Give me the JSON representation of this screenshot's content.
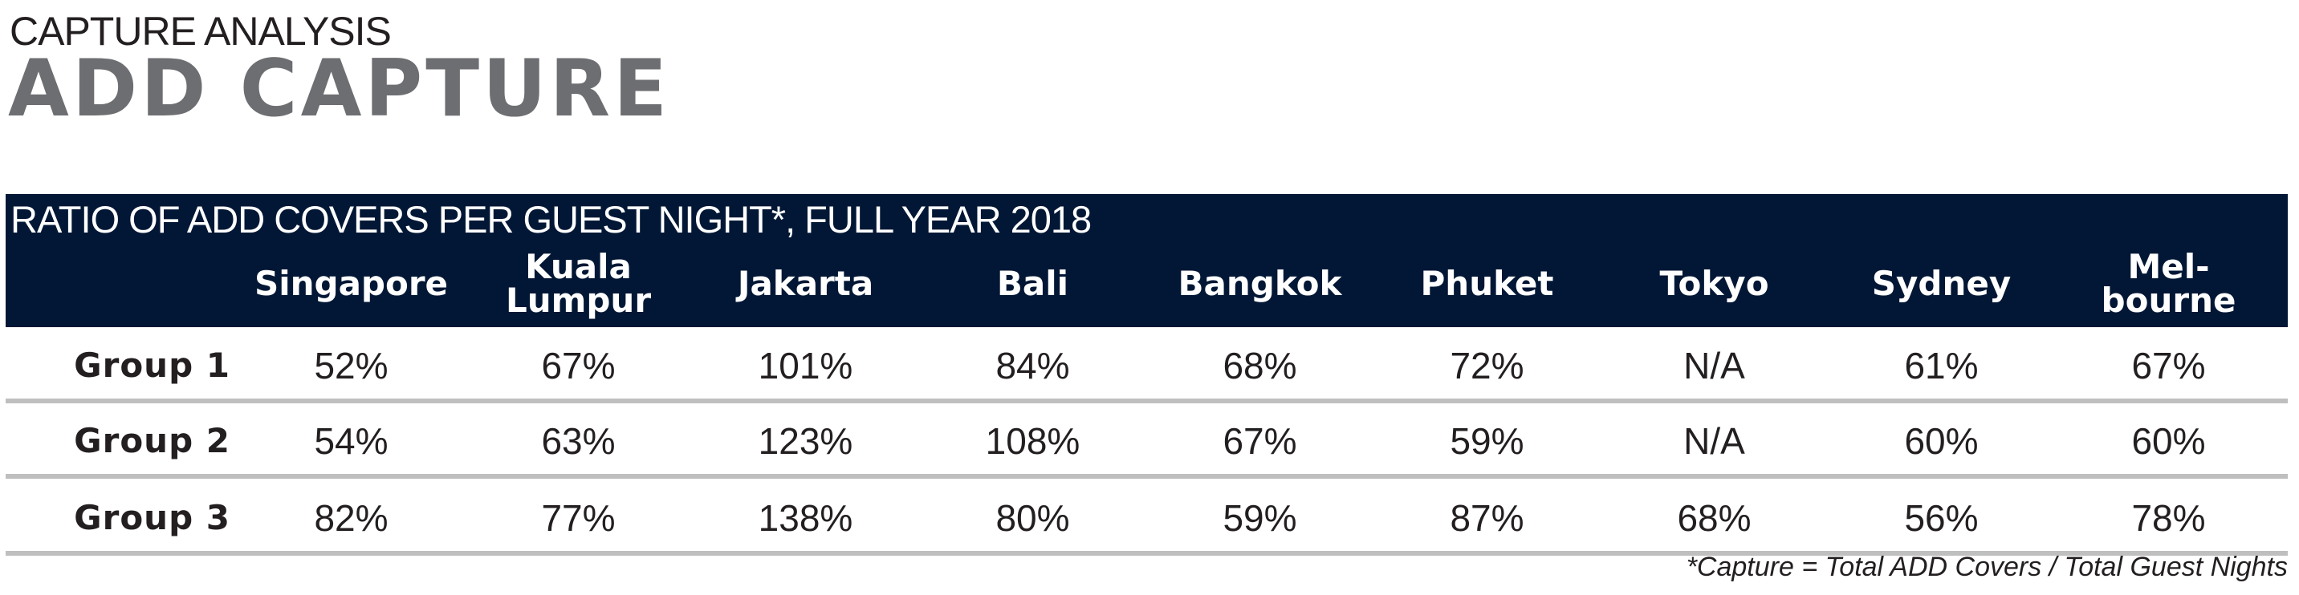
{
  "header": {
    "kicker": "CAPTURE ANALYSIS",
    "title": "ADD CAPTURE"
  },
  "table": {
    "title": "RATIO OF ADD COVERS PER GUEST NIGHT*, FULL YEAR 2018",
    "columns": [
      "Singapore",
      "Kuala Lumpur",
      "Jakarta",
      "Bali",
      "Bangkok",
      "Phuket",
      "Tokyo",
      "Sydney",
      "Mel-bourne"
    ],
    "rows": [
      {
        "label": "Group 1",
        "values": [
          "52%",
          "67%",
          "101%",
          "84%",
          "68%",
          "72%",
          "N/A",
          "61%",
          "67%"
        ]
      },
      {
        "label": "Group 2",
        "values": [
          "54%",
          "63%",
          "123%",
          "108%",
          "67%",
          "59%",
          "N/A",
          "60%",
          "60%"
        ]
      },
      {
        "label": "Group 3",
        "values": [
          "82%",
          "77%",
          "138%",
          "80%",
          "59%",
          "87%",
          "68%",
          "56%",
          "78%"
        ]
      }
    ],
    "footnote": "*Capture = Total ADD Covers / Total Guest Nights"
  },
  "colors": {
    "navy": "#021735",
    "title_gray": "#6d6e71",
    "separator": "#bfbfbf"
  }
}
